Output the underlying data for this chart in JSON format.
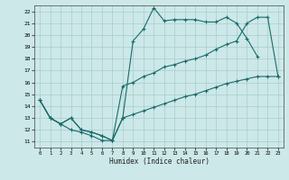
{
  "bg_color": "#cce8e8",
  "grid_color": "#aacccc",
  "line_color": "#1a6b6b",
  "xlabel": "Humidex (Indice chaleur)",
  "xticks": [
    0,
    1,
    2,
    3,
    4,
    5,
    6,
    7,
    8,
    9,
    10,
    11,
    12,
    13,
    14,
    15,
    16,
    17,
    18,
    19,
    20,
    21,
    22,
    23
  ],
  "yticks": [
    11,
    12,
    13,
    14,
    15,
    16,
    17,
    18,
    19,
    20,
    21,
    22
  ],
  "xlim": [
    -0.5,
    23.5
  ],
  "ylim": [
    10.5,
    22.5
  ],
  "line1_x": [
    0,
    1,
    2,
    3,
    4,
    5,
    6,
    7,
    8,
    9,
    10,
    11,
    12,
    13,
    14,
    15,
    16,
    17,
    18,
    19,
    20,
    21
  ],
  "line1_y": [
    14.5,
    13.0,
    12.5,
    12.0,
    11.8,
    11.5,
    11.1,
    11.1,
    13.0,
    19.5,
    20.5,
    22.3,
    21.2,
    21.3,
    21.3,
    21.3,
    21.1,
    21.1,
    21.5,
    21.0,
    19.7,
    18.2
  ],
  "line2_x": [
    0,
    1,
    2,
    3,
    4,
    5,
    6,
    7,
    8,
    9,
    10,
    11,
    12,
    13,
    14,
    15,
    16,
    17,
    18,
    19,
    20,
    21,
    22,
    23
  ],
  "line2_y": [
    14.5,
    13.0,
    12.5,
    13.0,
    12.0,
    11.8,
    11.5,
    11.1,
    15.7,
    16.0,
    16.5,
    16.8,
    17.3,
    17.5,
    17.8,
    18.0,
    18.3,
    18.8,
    19.2,
    19.5,
    21.0,
    21.5,
    21.5,
    16.5
  ],
  "line3_x": [
    0,
    1,
    2,
    3,
    4,
    5,
    6,
    7,
    8,
    9,
    10,
    11,
    12,
    13,
    14,
    15,
    16,
    17,
    18,
    19,
    20,
    21,
    22,
    23
  ],
  "line3_y": [
    14.5,
    13.0,
    12.5,
    13.0,
    12.0,
    11.8,
    11.5,
    11.1,
    13.0,
    13.3,
    13.6,
    13.9,
    14.2,
    14.5,
    14.8,
    15.0,
    15.3,
    15.6,
    15.9,
    16.1,
    16.3,
    16.5,
    16.5,
    16.5
  ]
}
